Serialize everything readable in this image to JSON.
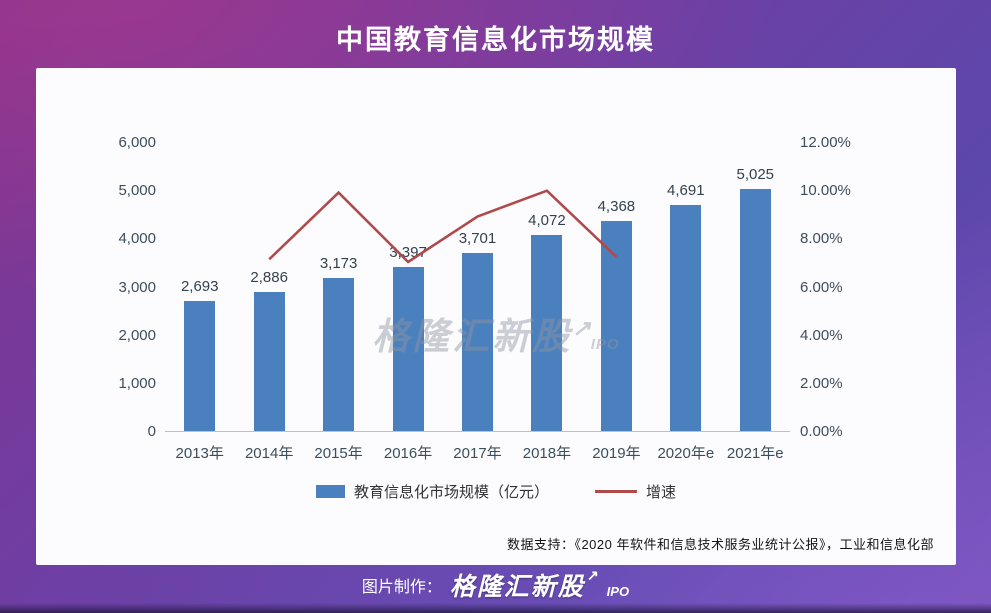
{
  "page_title": "中国教育信息化市场规模",
  "chart_data": {
    "type": "bar",
    "title": "中国教育信息化市场规模",
    "categories": [
      "2013年",
      "2014年",
      "2015年",
      "2016年",
      "2017年",
      "2018年",
      "2019年",
      "2020年e",
      "2021年e"
    ],
    "series": [
      {
        "name": "教育信息化市场规模（亿元）",
        "type": "bar",
        "axis": "left",
        "color": "#4a80bd",
        "values": [
          2693,
          2886,
          3173,
          3397,
          3701,
          4072,
          4368,
          4691,
          5025
        ],
        "value_labels": [
          "2,693",
          "2,886",
          "3,173",
          "3,397",
          "3,701",
          "4,072",
          "4,368",
          "4,691",
          "5,025"
        ]
      },
      {
        "name": "增速",
        "type": "line",
        "axis": "right",
        "color": "#b04a4a",
        "x_start_index": 1,
        "unit": "%",
        "values": [
          7.17,
          9.94,
          7.06,
          8.95,
          10.02,
          7.27
        ]
      }
    ],
    "left_axis": {
      "min": 0,
      "max": 6000,
      "step": 1000,
      "tick_labels": [
        "0",
        "1,000",
        "2,000",
        "3,000",
        "4,000",
        "5,000",
        "6,000"
      ]
    },
    "right_axis": {
      "min": 0,
      "max": 12,
      "step": 2,
      "tick_labels": [
        "0.00%",
        "2.00%",
        "4.00%",
        "6.00%",
        "8.00%",
        "10.00%",
        "12.00%"
      ]
    },
    "grid": false,
    "legend_position": "bottom"
  },
  "legend": {
    "bar_label": "教育信息化市场规模（亿元）",
    "line_label": "增速"
  },
  "watermark": {
    "brand": "格隆汇新股",
    "arrow": "↗",
    "suffix": "IPO"
  },
  "footnote": "数据支持：《2020 年软件和信息技术服务业统计公报》，工业和信息化部",
  "footer": {
    "prefix": "图片制作：",
    "brand": "格隆汇新股",
    "arrow": "↗",
    "suffix": "IPO"
  },
  "colors": {
    "bar": "#4a80bd",
    "line": "#b04a4a",
    "card_bg": "#fcfcfe",
    "axis_text": "#3c4e5c"
  }
}
